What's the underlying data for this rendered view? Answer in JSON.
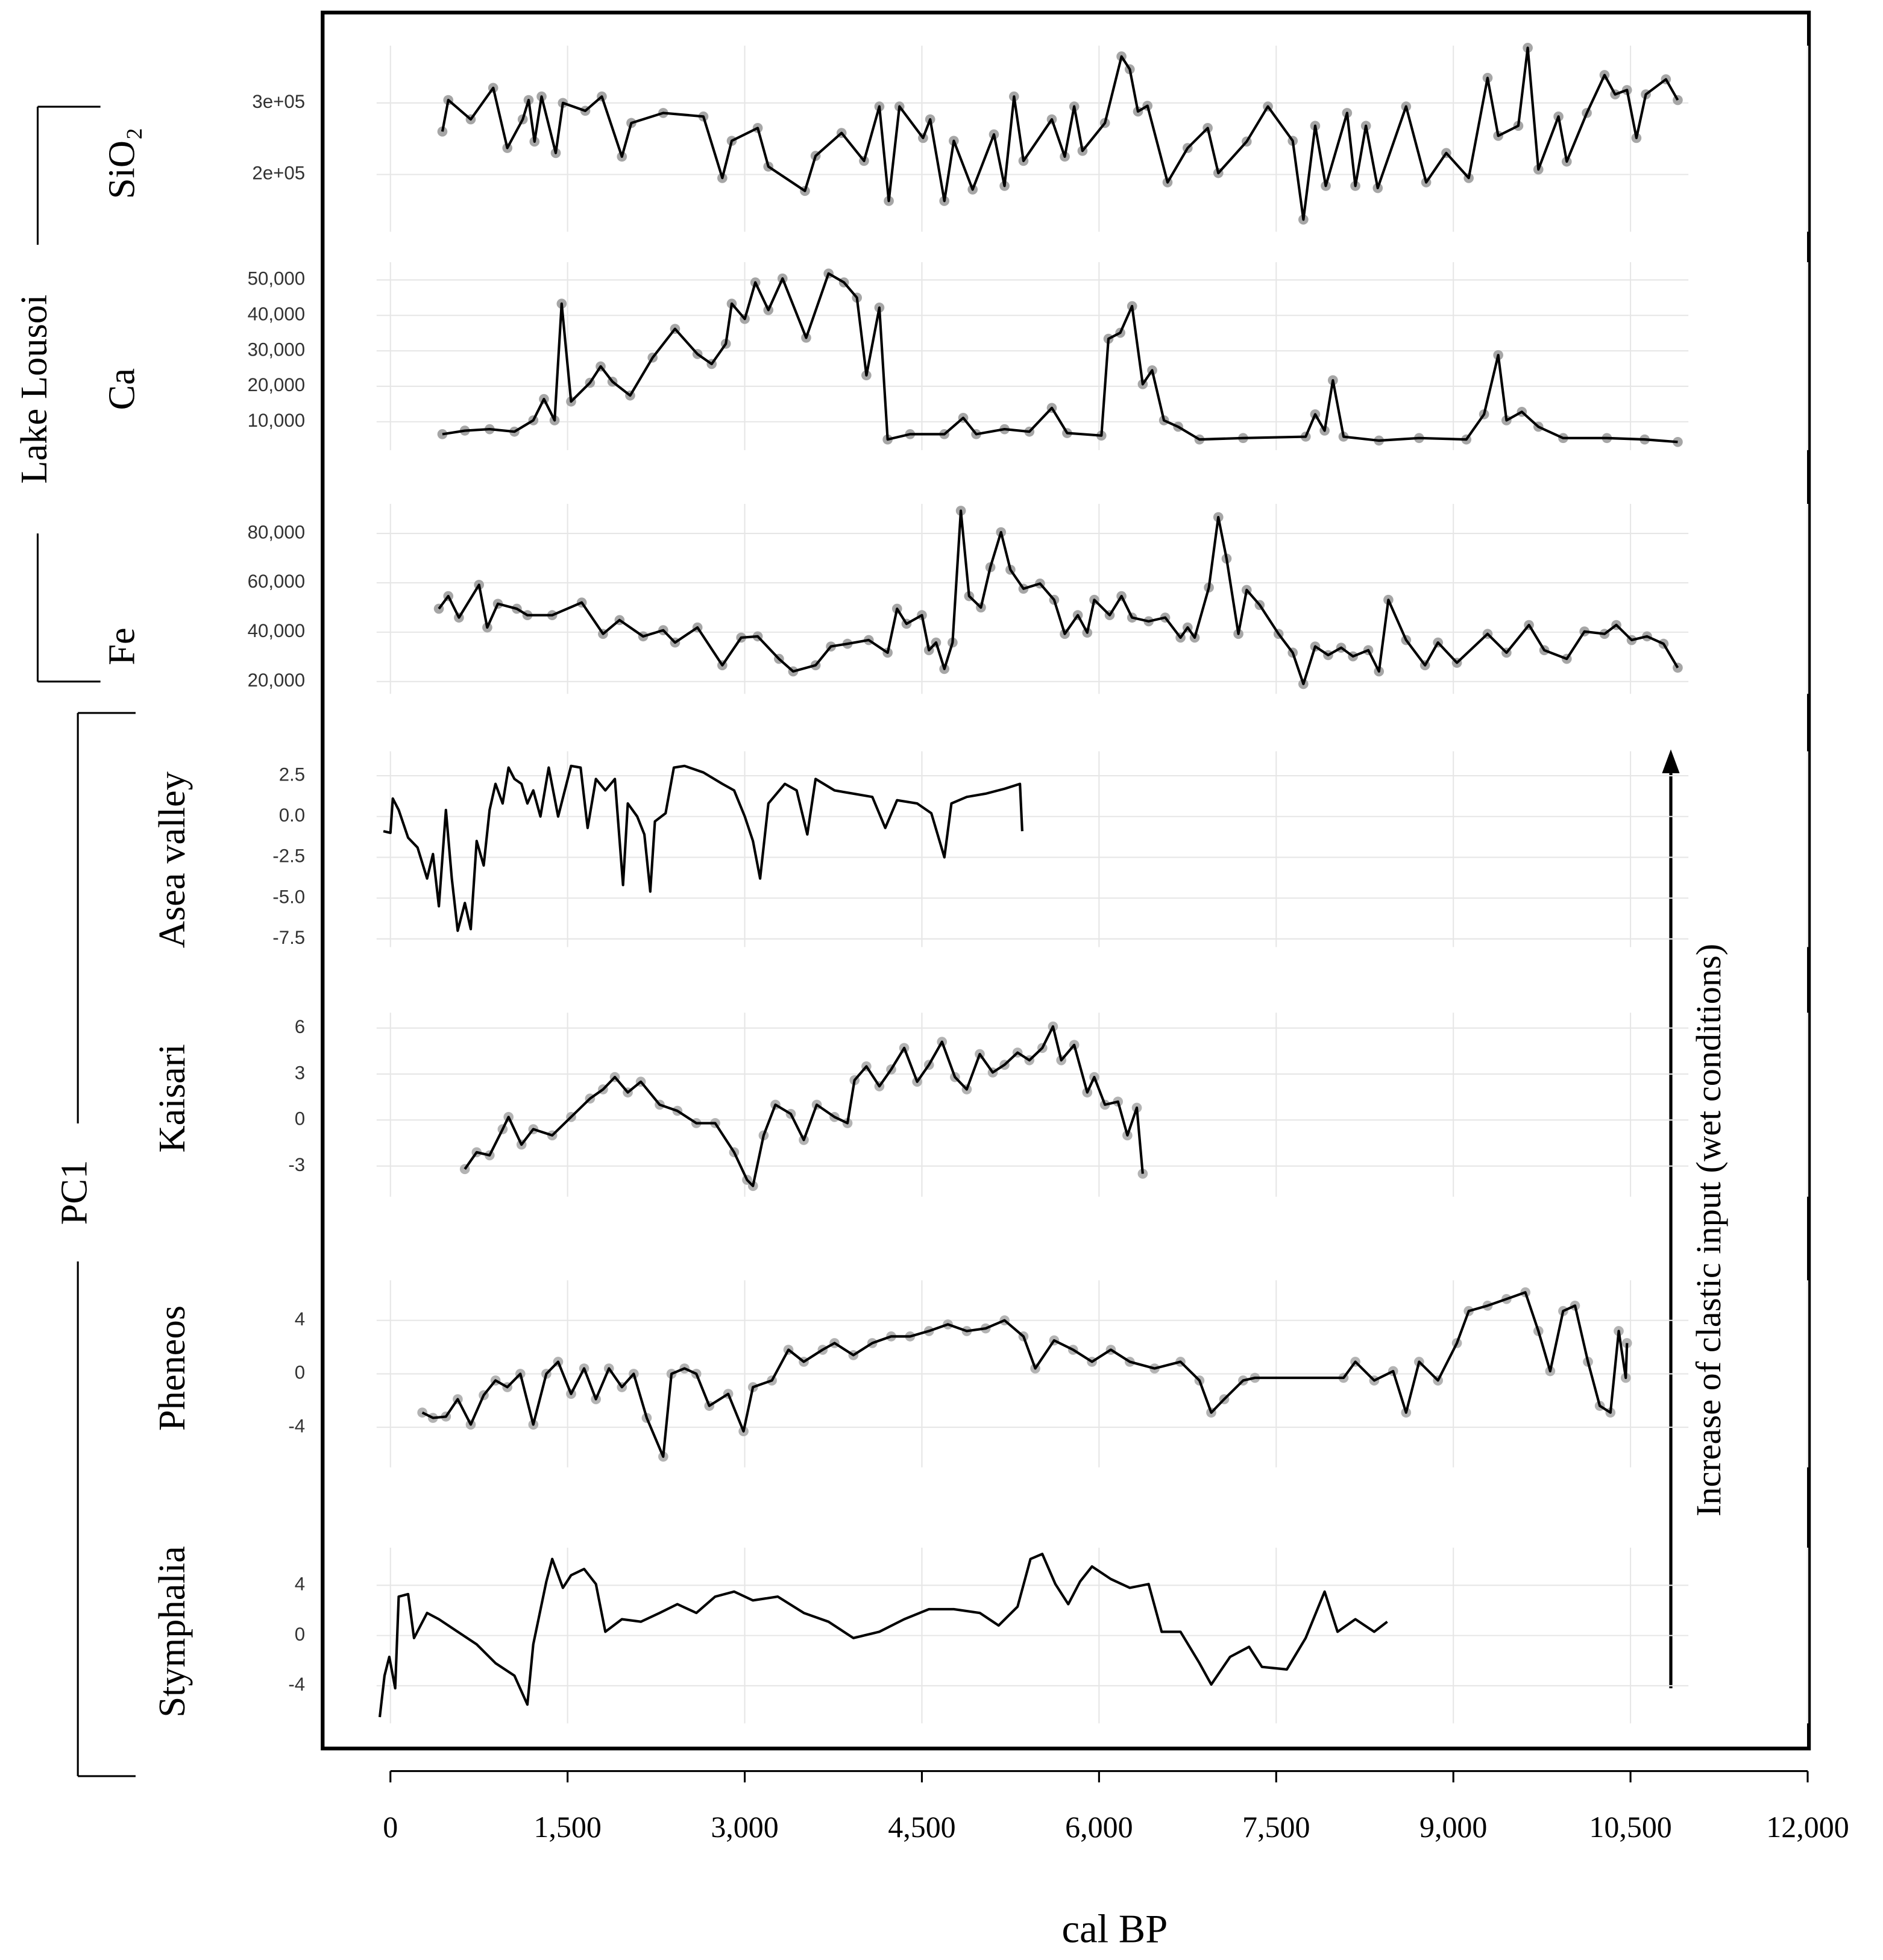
{
  "chart_data": [
    {
      "type": "line",
      "ylabel": "SiO₂",
      "color": "#000000",
      "marker_color": "#a6a6a6",
      "markers": true,
      "grid": true,
      "ylim": [
        120000,
        380000
      ],
      "yticks": [
        {
          "value": 200000,
          "label": "2e+05"
        },
        {
          "value": 300000,
          "label": "3e+05"
        }
      ],
      "x": [
        440,
        490,
        680,
        870,
        990,
        1120,
        1170,
        1220,
        1280,
        1400,
        1460,
        1650,
        1790,
        1960,
        2040,
        2310,
        2650,
        2810,
        2890,
        3110,
        3200,
        3510,
        3600,
        3820,
        4010,
        4140,
        4220,
        4310,
        4510,
        4570,
        4690,
        4770,
        4930,
        5110,
        5200,
        5280,
        5360,
        5600,
        5710,
        5790,
        5860,
        6050,
        6190,
        6260,
        6330,
        6410,
        6580,
        6750,
        6920,
        7010,
        7250,
        7430,
        7640,
        7730,
        7830,
        7920,
        8100,
        8170,
        8260,
        8360,
        8600,
        8770,
        8940,
        9130,
        9290,
        9380,
        9550,
        9630,
        9720,
        9890,
        9960,
        10130,
        10280,
        10370,
        10470,
        10550,
        10630,
        10800,
        10900
      ],
      "values": [
        260000,
        304000,
        277000,
        321000,
        237000,
        277000,
        304000,
        246000,
        309000,
        230000,
        300000,
        289000,
        309000,
        225000,
        272000,
        286000,
        281000,
        195000,
        247000,
        265000,
        211000,
        177000,
        226000,
        258000,
        219000,
        295000,
        163000,
        295000,
        251000,
        277000,
        163000,
        247000,
        179000,
        256000,
        184000,
        309000,
        219000,
        277000,
        225000,
        295000,
        233000,
        272000,
        365000,
        347000,
        288000,
        296000,
        189000,
        237000,
        265000,
        202000,
        246000,
        295000,
        247000,
        137000,
        268000,
        184000,
        286000,
        184000,
        268000,
        181000,
        295000,
        189000,
        230000,
        195000,
        335000,
        254000,
        268000,
        377000,
        207000,
        281000,
        218000,
        286000,
        339000,
        312000,
        318000,
        251000,
        312000,
        333000,
        304000
      ]
    },
    {
      "type": "line",
      "ylabel": "Ca",
      "color": "#000000",
      "marker_color": "#a6a6a6",
      "markers": true,
      "grid": true,
      "ylim": [
        2000,
        55000
      ],
      "yticks": [
        {
          "value": 10000,
          "label": "10,000"
        },
        {
          "value": 20000,
          "label": "20,000"
        },
        {
          "value": 30000,
          "label": "30,000"
        },
        {
          "value": 40000,
          "label": "40,000"
        },
        {
          "value": 50000,
          "label": "50,000"
        }
      ],
      "x": [
        440,
        630,
        840,
        1050,
        1210,
        1300,
        1390,
        1450,
        1530,
        1690,
        1780,
        1880,
        2030,
        2220,
        2410,
        2600,
        2720,
        2840,
        2890,
        3000,
        3090,
        3200,
        3320,
        3520,
        3710,
        3840,
        3950,
        4030,
        4140,
        4210,
        4400,
        4690,
        4850,
        4960,
        5200,
        5410,
        5600,
        5730,
        6020,
        6080,
        6180,
        6280,
        6370,
        6450,
        6550,
        6670,
        6850,
        7220,
        7750,
        7830,
        7910,
        7980,
        8070,
        8370,
        8710,
        9110,
        9260,
        9380,
        9450,
        9580,
        9720,
        9930,
        10300,
        10620,
        10900
      ],
      "values": [
        6500,
        7500,
        7900,
        7200,
        10400,
        16400,
        10400,
        43300,
        15700,
        21000,
        25600,
        21300,
        17400,
        28100,
        36200,
        29100,
        26300,
        32000,
        43300,
        39000,
        49300,
        41500,
        50400,
        33700,
        51800,
        49300,
        45000,
        23100,
        42200,
        5000,
        6500,
        6500,
        11100,
        6500,
        7900,
        7200,
        13900,
        6800,
        6100,
        33400,
        35100,
        42600,
        20600,
        24500,
        10400,
        8600,
        5000,
        5400,
        5800,
        12100,
        7500,
        21700,
        5800,
        4700,
        5400,
        5000,
        12100,
        28800,
        10400,
        12800,
        8600,
        5400,
        5400,
        5000,
        4300
      ]
    },
    {
      "type": "line",
      "ylabel": "Fe",
      "color": "#000000",
      "marker_color": "#a6a6a6",
      "markers": true,
      "grid": true,
      "ylim": [
        15000,
        92000
      ],
      "yticks": [
        {
          "value": 20000,
          "label": "20,000"
        },
        {
          "value": 40000,
          "label": "40,000"
        },
        {
          "value": 60000,
          "label": "60,000"
        },
        {
          "value": 80000,
          "label": "80,000"
        }
      ],
      "x": [
        410,
        490,
        580,
        750,
        820,
        910,
        1070,
        1160,
        1370,
        1620,
        1800,
        1940,
        2140,
        2310,
        2410,
        2600,
        2810,
        2970,
        3110,
        3290,
        3410,
        3600,
        3730,
        3870,
        4050,
        4210,
        4290,
        4370,
        4500,
        4560,
        4620,
        4690,
        4760,
        4830,
        4900,
        5000,
        5080,
        5170,
        5250,
        5360,
        5500,
        5620,
        5710,
        5820,
        5900,
        5960,
        6090,
        6190,
        6280,
        6420,
        6560,
        6690,
        6750,
        6810,
        6930,
        7010,
        7080,
        7180,
        7250,
        7360,
        7520,
        7640,
        7730,
        7830,
        7940,
        8050,
        8150,
        8280,
        8370,
        8450,
        8600,
        8760,
        8870,
        9030,
        9290,
        9450,
        9640,
        9770,
        9960,
        10110,
        10280,
        10380,
        10510,
        10640,
        10780,
        10900
      ],
      "values": [
        49500,
        54600,
        45900,
        59200,
        41900,
        51500,
        49500,
        46900,
        46900,
        52000,
        39300,
        44900,
        38300,
        40800,
        35800,
        41900,
        26600,
        37800,
        38300,
        29200,
        24100,
        26600,
        34200,
        35300,
        36800,
        31700,
        49500,
        43400,
        46900,
        32700,
        35800,
        25100,
        35800,
        89200,
        54600,
        50000,
        66300,
        80500,
        65300,
        57600,
        59700,
        53100,
        39300,
        46900,
        39800,
        53100,
        46900,
        54600,
        45900,
        44400,
        45900,
        37800,
        41900,
        37800,
        58100,
        86600,
        69800,
        39300,
        57100,
        51000,
        39300,
        31700,
        19000,
        34200,
        30700,
        33700,
        30200,
        32700,
        24100,
        53100,
        36800,
        26600,
        35800,
        27600,
        39300,
        31700,
        42900,
        32700,
        29200,
        40300,
        39300,
        42900,
        36800,
        38300,
        35300,
        25600
      ]
    },
    {
      "type": "line",
      "ylabel": "Asea valley",
      "color": "#000000",
      "markers": false,
      "grid": true,
      "ylim": [
        -8,
        4
      ],
      "yticks": [
        2.5,
        {
          "value": 0,
          "label": "0.0"
        },
        -2.5,
        {
          "value": -5,
          "label": "-5.0"
        },
        -7.5
      ],
      "x": [
        -60,
        0,
        20,
        70,
        150,
        230,
        310,
        360,
        410,
        470,
        520,
        570,
        630,
        680,
        730,
        790,
        840,
        890,
        950,
        1000,
        1050,
        1110,
        1160,
        1210,
        1270,
        1340,
        1420,
        1530,
        1610,
        1670,
        1740,
        1820,
        1900,
        1970,
        2010,
        2090,
        2150,
        2200,
        2240,
        2330,
        2400,
        2490,
        2650,
        2810,
        2910,
        3000,
        3070,
        3130,
        3200,
        3340,
        3440,
        3530,
        3600,
        3760,
        3920,
        4080,
        4190,
        4290,
        4460,
        4580,
        4690,
        4750,
        4880,
        5040,
        5200,
        5330,
        5350
      ],
      "values": [
        -0.9,
        -1.0,
        1.1,
        0.4,
        -1.3,
        -1.9,
        -3.8,
        -2.3,
        -5.5,
        0.4,
        -3.8,
        -7.0,
        -5.3,
        -6.9,
        -1.5,
        -3.0,
        0.4,
        2.0,
        0.8,
        3.0,
        2.3,
        2.0,
        0.8,
        1.6,
        0.0,
        3.0,
        0.0,
        3.1,
        3.0,
        -0.7,
        2.3,
        1.6,
        2.3,
        -4.2,
        0.8,
        0.0,
        -1.1,
        -4.6,
        -0.3,
        0.2,
        3.0,
        3.1,
        2.7,
        2.0,
        1.6,
        0.0,
        -1.5,
        -3.8,
        0.8,
        2.0,
        1.6,
        -1.1,
        2.3,
        1.6,
        1.4,
        1.2,
        -0.7,
        1.0,
        0.8,
        0.2,
        -2.5,
        0.8,
        1.2,
        1.4,
        1.7,
        2.0,
        -0.9
      ]
    },
    {
      "type": "line",
      "ylabel": "Kaisari",
      "color": "#000000",
      "marker_color": "#b3b3b3",
      "markers": true,
      "grid": true,
      "ylim": [
        -5,
        7
      ],
      "yticks": [
        -3,
        0,
        3,
        6
      ],
      "x": [
        630,
        730,
        840,
        950,
        1000,
        1110,
        1210,
        1370,
        1530,
        1690,
        1800,
        1900,
        2010,
        2120,
        2280,
        2430,
        2590,
        2750,
        2910,
        3020,
        3070,
        3160,
        3260,
        3390,
        3500,
        3610,
        3760,
        3870,
        3930,
        4030,
        4140,
        4240,
        4350,
        4460,
        4560,
        4670,
        4780,
        4880,
        4990,
        5100,
        5200,
        5310,
        5410,
        5520,
        5610,
        5680,
        5790,
        5900,
        5960,
        6050,
        6160,
        6240,
        6320,
        6370
      ],
      "values": [
        -3.2,
        -2.1,
        -2.3,
        -0.6,
        0.2,
        -1.6,
        -0.6,
        -1.0,
        0.2,
        1.4,
        2.0,
        2.8,
        1.8,
        2.5,
        1.0,
        0.6,
        -0.2,
        -0.2,
        -2.1,
        -3.9,
        -4.3,
        -1.0,
        1.0,
        0.4,
        -1.3,
        1.0,
        0.2,
        -0.2,
        2.6,
        3.5,
        2.2,
        3.3,
        4.7,
        2.5,
        3.6,
        5.1,
        2.8,
        2.0,
        4.3,
        3.1,
        3.6,
        4.4,
        3.9,
        4.7,
        6.1,
        3.9,
        4.9,
        1.8,
        2.8,
        1.0,
        1.2,
        -1.0,
        0.8,
        -3.5
      ]
    },
    {
      "type": "line",
      "ylabel": "Pheneos",
      "color": "#000000",
      "marker_color": "#b3b3b3",
      "markers": true,
      "grid": true,
      "ylim": [
        -7,
        7
      ],
      "yticks": [
        -4,
        0,
        4
      ],
      "x": [
        270,
        360,
        470,
        570,
        680,
        790,
        890,
        990,
        1100,
        1210,
        1320,
        1420,
        1530,
        1640,
        1740,
        1850,
        1960,
        2060,
        2170,
        2310,
        2380,
        2490,
        2590,
        2700,
        2860,
        2990,
        3070,
        3230,
        3370,
        3500,
        3660,
        3760,
        3920,
        4080,
        4240,
        4400,
        4560,
        4720,
        4880,
        5040,
        5200,
        5360,
        5460,
        5620,
        5780,
        5940,
        6100,
        6260,
        6470,
        6690,
        6850,
        6950,
        7060,
        7220,
        7320,
        8070,
        8170,
        8330,
        8490,
        8600,
        8710,
        8870,
        9030,
        9130,
        9290,
        9450,
        9610,
        9720,
        9820,
        9930,
        10030,
        10140,
        10240,
        10330,
        10400,
        10460,
        10470
      ],
      "values": [
        -2.9,
        -3.3,
        -3.2,
        -1.9,
        -3.8,
        -1.6,
        -0.5,
        -1.0,
        0.0,
        -3.8,
        0.0,
        0.9,
        -1.5,
        0.4,
        -1.9,
        0.4,
        -1.0,
        0.0,
        -3.3,
        -6.2,
        0.0,
        0.4,
        0.0,
        -2.4,
        -1.5,
        -4.3,
        -1.0,
        -0.5,
        1.8,
        0.9,
        1.8,
        2.3,
        1.4,
        2.3,
        2.8,
        2.8,
        3.2,
        3.7,
        3.2,
        3.4,
        4.0,
        2.8,
        0.4,
        2.5,
        1.8,
        0.9,
        1.8,
        0.9,
        0.4,
        0.9,
        -0.5,
        -2.9,
        -1.9,
        -0.5,
        -0.3,
        -0.3,
        0.9,
        -0.5,
        0.2,
        -2.9,
        0.9,
        -0.5,
        2.3,
        4.7,
        5.1,
        5.6,
        6.1,
        3.2,
        0.2,
        4.7,
        5.1,
        0.9,
        -2.4,
        -2.9,
        3.2,
        -0.3,
        2.3
      ]
    },
    {
      "type": "line",
      "ylabel": "Stymphalia",
      "color": "#000000",
      "markers": false,
      "grid": true,
      "ylim": [
        -7,
        7
      ],
      "yticks": [
        -4,
        0,
        4
      ],
      "xlim": [
        0,
        12000
      ],
      "xticks": [
        0,
        {
          "value": 1500,
          "label": "1,500"
        },
        {
          "value": 3000,
          "label": "3,000"
        },
        {
          "value": 4500,
          "label": "4,500"
        },
        {
          "value": 6000,
          "label": "6,000"
        },
        {
          "value": 7500,
          "label": "7,500"
        },
        {
          "value": 9000,
          "label": "9,000"
        },
        {
          "value": 10500,
          "label": "10,500"
        },
        {
          "value": 12000,
          "label": "12,000"
        }
      ],
      "xlabel": "cal BP",
      "x": [
        -90,
        -50,
        -10,
        40,
        70,
        150,
        200,
        310,
        410,
        570,
        730,
        890,
        1050,
        1160,
        1210,
        1320,
        1370,
        1460,
        1530,
        1640,
        1740,
        1820,
        1960,
        2120,
        2280,
        2430,
        2590,
        2750,
        2910,
        3070,
        3280,
        3500,
        3710,
        3920,
        4140,
        4350,
        4560,
        4770,
        4990,
        5150,
        5310,
        5420,
        5520,
        5630,
        5740,
        5840,
        5940,
        6100,
        6260,
        6420,
        6530,
        6690,
        6850,
        6950,
        7110,
        7270,
        7380,
        7590,
        7750,
        7910,
        8020,
        8170,
        8330,
        8440
      ],
      "values": [
        -6.5,
        -3.2,
        -1.7,
        -4.2,
        3.1,
        3.3,
        -0.2,
        1.8,
        1.3,
        0.3,
        -0.7,
        -2.2,
        -3.2,
        -5.5,
        -0.7,
        4.3,
        6.1,
        3.8,
        4.8,
        5.3,
        4.1,
        0.3,
        1.3,
        1.1,
        1.8,
        2.5,
        1.8,
        3.1,
        3.5,
        2.8,
        3.1,
        1.8,
        1.1,
        -0.2,
        0.3,
        1.3,
        2.1,
        2.1,
        1.8,
        0.8,
        2.3,
        6.1,
        6.5,
        4.1,
        2.5,
        4.3,
        5.5,
        4.5,
        3.8,
        4.1,
        0.3,
        0.3,
        -2.2,
        -3.9,
        -1.7,
        -0.9,
        -2.5,
        -2.7,
        -0.2,
        3.5,
        0.3,
        1.3,
        0.3,
        1.1
      ]
    }
  ],
  "groups": [
    {
      "label": "Lake Lousoi"
    },
    {
      "label": "PC1"
    }
  ],
  "annotation": "Increase of clastic input (wet conditions)"
}
